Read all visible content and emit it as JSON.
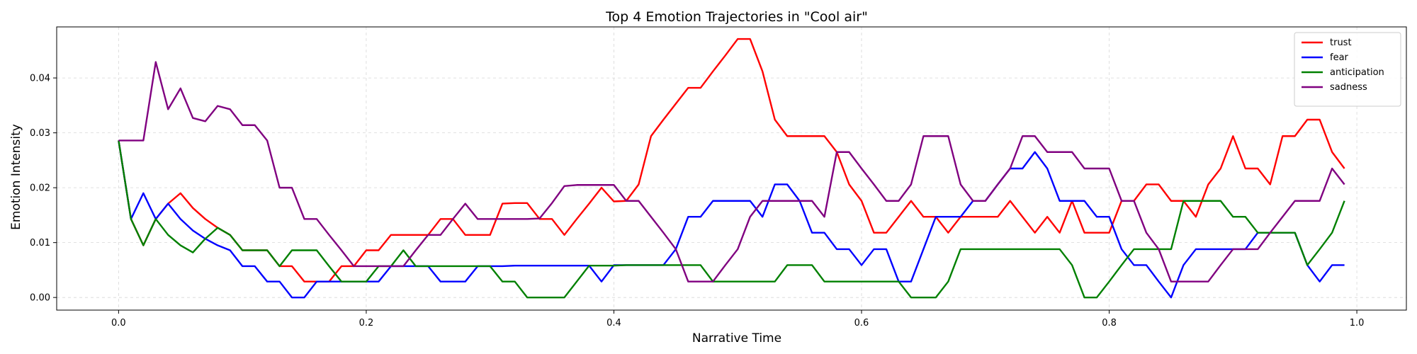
{
  "chart_data": {
    "type": "line",
    "title": "Top 4 Emotion Trajectories in \"Cool air\"",
    "xlabel": "Narrative Time",
    "ylabel": "Emotion Intensity",
    "xlim": [
      -0.05,
      1.04
    ],
    "ylim": [
      -0.0023,
      0.0493
    ],
    "xticks": [
      0.0,
      0.2,
      0.4,
      0.6,
      0.8,
      1.0
    ],
    "xtick_labels": [
      "0.0",
      "0.2",
      "0.4",
      "0.6",
      "0.8",
      "1.0"
    ],
    "yticks": [
      0.0,
      0.01,
      0.02,
      0.03,
      0.04
    ],
    "ytick_labels": [
      "0.00",
      "0.01",
      "0.02",
      "0.03",
      "0.04"
    ],
    "grid": true,
    "legend_position": "top-right",
    "x": [
      0.0,
      0.01,
      0.02,
      0.03,
      0.04,
      0.05,
      0.06,
      0.07,
      0.08,
      0.09,
      0.1,
      0.11,
      0.12,
      0.13,
      0.14,
      0.15,
      0.16,
      0.17,
      0.18,
      0.19,
      0.2,
      0.21,
      0.22,
      0.23,
      0.24,
      0.25,
      0.26,
      0.27,
      0.28,
      0.29,
      0.3,
      0.31,
      0.32,
      0.33,
      0.34,
      0.35,
      0.36,
      0.37,
      0.38,
      0.39,
      0.4,
      0.41,
      0.42,
      0.43,
      0.44,
      0.45,
      0.46,
      0.47,
      0.48,
      0.49,
      0.5,
      0.51,
      0.52,
      0.53,
      0.54,
      0.55,
      0.56,
      0.57,
      0.58,
      0.59,
      0.6,
      0.61,
      0.62,
      0.63,
      0.64,
      0.65,
      0.66,
      0.67,
      0.68,
      0.69,
      0.7,
      0.71,
      0.72,
      0.73,
      0.74,
      0.75,
      0.76,
      0.77,
      0.78,
      0.79,
      0.8,
      0.81,
      0.82,
      0.83,
      0.84,
      0.85,
      0.86,
      0.87,
      0.88,
      0.89,
      0.9,
      0.91,
      0.92,
      0.93,
      0.94,
      0.95,
      0.96,
      0.97,
      0.98,
      0.99
    ],
    "series": [
      {
        "name": "trust",
        "color": "#ff0000",
        "values": [
          0.0286,
          0.0143,
          0.0095,
          0.0143,
          0.0171,
          0.019,
          0.0163,
          0.0143,
          0.0127,
          0.0114,
          0.0086,
          0.0086,
          0.0086,
          0.0057,
          0.0057,
          0.0029,
          0.0029,
          0.0029,
          0.0057,
          0.0057,
          0.0086,
          0.0086,
          0.0114,
          0.0114,
          0.0114,
          0.0114,
          0.0143,
          0.0143,
          0.0114,
          0.0114,
          0.0114,
          0.0171,
          0.0172,
          0.0172,
          0.0143,
          0.0143,
          0.0114,
          0.0143,
          0.0171,
          0.02,
          0.0175,
          0.0176,
          0.0206,
          0.0294,
          0.0324,
          0.0353,
          0.0382,
          0.0382,
          0.0412,
          0.0441,
          0.0471,
          0.0471,
          0.0412,
          0.0324,
          0.0294,
          0.0294,
          0.0294,
          0.0294,
          0.0265,
          0.0206,
          0.0176,
          0.0118,
          0.0118,
          0.0147,
          0.0176,
          0.0147,
          0.0147,
          0.0118,
          0.0147,
          0.0147,
          0.0147,
          0.0147,
          0.0176,
          0.0147,
          0.0118,
          0.0147,
          0.0118,
          0.0176,
          0.0118,
          0.0118,
          0.0118,
          0.0176,
          0.0176,
          0.0206,
          0.0206,
          0.0176,
          0.0176,
          0.0147,
          0.0206,
          0.0235,
          0.0294,
          0.0235,
          0.0235,
          0.0206,
          0.0294,
          0.0294,
          0.0324,
          0.0324,
          0.0265,
          0.0235
        ]
      },
      {
        "name": "fear",
        "color": "#0000ff",
        "values": [
          0.0286,
          0.0143,
          0.019,
          0.0143,
          0.0171,
          0.0143,
          0.0122,
          0.0107,
          0.0095,
          0.0086,
          0.0057,
          0.0057,
          0.0029,
          0.0029,
          0.0,
          0.0,
          0.0029,
          0.0029,
          0.0029,
          0.0029,
          0.0029,
          0.0029,
          0.0057,
          0.0057,
          0.0057,
          0.0057,
          0.0029,
          0.0029,
          0.0029,
          0.0057,
          0.0057,
          0.0057,
          0.0058,
          0.0058,
          0.0058,
          0.0058,
          0.0058,
          0.0058,
          0.0058,
          0.0029,
          0.0059,
          0.0059,
          0.0059,
          0.0059,
          0.0059,
          0.0088,
          0.0147,
          0.0147,
          0.0176,
          0.0176,
          0.0176,
          0.0176,
          0.0147,
          0.0206,
          0.0206,
          0.0176,
          0.0118,
          0.0118,
          0.0088,
          0.0088,
          0.0059,
          0.0088,
          0.0088,
          0.0029,
          0.0029,
          0.0088,
          0.0147,
          0.0147,
          0.0147,
          0.0176,
          0.0176,
          0.0206,
          0.0235,
          0.0235,
          0.0265,
          0.0235,
          0.0176,
          0.0176,
          0.0176,
          0.0147,
          0.0147,
          0.0088,
          0.0059,
          0.0059,
          0.0029,
          0.0,
          0.0059,
          0.0088,
          0.0088,
          0.0088,
          0.0088,
          0.0088,
          0.0118,
          0.0118,
          0.0118,
          0.0118,
          0.0059,
          0.0029,
          0.0059,
          0.0059
        ]
      },
      {
        "name": "anticipation",
        "color": "#008000",
        "values": [
          0.0286,
          0.0143,
          0.0095,
          0.0143,
          0.0114,
          0.0095,
          0.0082,
          0.0107,
          0.0127,
          0.0114,
          0.0086,
          0.0086,
          0.0086,
          0.0057,
          0.0086,
          0.0086,
          0.0086,
          0.0057,
          0.0029,
          0.0029,
          0.0029,
          0.0057,
          0.0057,
          0.0086,
          0.0057,
          0.0057,
          0.0057,
          0.0057,
          0.0057,
          0.0057,
          0.0057,
          0.0029,
          0.0029,
          0.0,
          0.0,
          0.0,
          0.0,
          0.0029,
          0.0058,
          0.0058,
          0.0058,
          0.0059,
          0.0059,
          0.0059,
          0.0059,
          0.0059,
          0.0059,
          0.0059,
          0.0029,
          0.0029,
          0.0029,
          0.0029,
          0.0029,
          0.0029,
          0.0059,
          0.0059,
          0.0059,
          0.0029,
          0.0029,
          0.0029,
          0.0029,
          0.0029,
          0.0029,
          0.0029,
          0.0,
          0.0,
          0.0,
          0.0029,
          0.0088,
          0.0088,
          0.0088,
          0.0088,
          0.0088,
          0.0088,
          0.0088,
          0.0088,
          0.0088,
          0.0059,
          0.0,
          0.0,
          0.0029,
          0.0059,
          0.0088,
          0.0088,
          0.0088,
          0.0088,
          0.0176,
          0.0176,
          0.0176,
          0.0176,
          0.0147,
          0.0147,
          0.0118,
          0.0118,
          0.0118,
          0.0118,
          0.0059,
          0.0088,
          0.0118,
          0.0176
        ]
      },
      {
        "name": "sadness",
        "color": "#800080",
        "values": [
          0.0286,
          0.0286,
          0.0286,
          0.0429,
          0.0343,
          0.0381,
          0.0327,
          0.0321,
          0.0349,
          0.0343,
          0.0314,
          0.0314,
          0.0286,
          0.02,
          0.02,
          0.0143,
          0.0143,
          0.0114,
          0.0086,
          0.0057,
          0.0057,
          0.0057,
          0.0057,
          0.0057,
          0.0086,
          0.0114,
          0.0114,
          0.0143,
          0.0171,
          0.0143,
          0.0143,
          0.0143,
          0.0143,
          0.0143,
          0.0144,
          0.0172,
          0.0203,
          0.0205,
          0.0205,
          0.0205,
          0.0205,
          0.0176,
          0.0176,
          0.0147,
          0.0118,
          0.0088,
          0.0029,
          0.0029,
          0.0029,
          0.0059,
          0.0088,
          0.0147,
          0.0176,
          0.0176,
          0.0176,
          0.0176,
          0.0176,
          0.0147,
          0.0265,
          0.0265,
          0.0235,
          0.0206,
          0.0176,
          0.0176,
          0.0206,
          0.0294,
          0.0294,
          0.0294,
          0.0206,
          0.0176,
          0.0176,
          0.0206,
          0.0235,
          0.0294,
          0.0294,
          0.0265,
          0.0265,
          0.0265,
          0.0235,
          0.0235,
          0.0235,
          0.0176,
          0.0176,
          0.0118,
          0.0088,
          0.0029,
          0.0029,
          0.0029,
          0.0029,
          0.0059,
          0.0088,
          0.0088,
          0.0088,
          0.0118,
          0.0147,
          0.0176,
          0.0176,
          0.0176,
          0.0235,
          0.0206
        ]
      }
    ]
  }
}
